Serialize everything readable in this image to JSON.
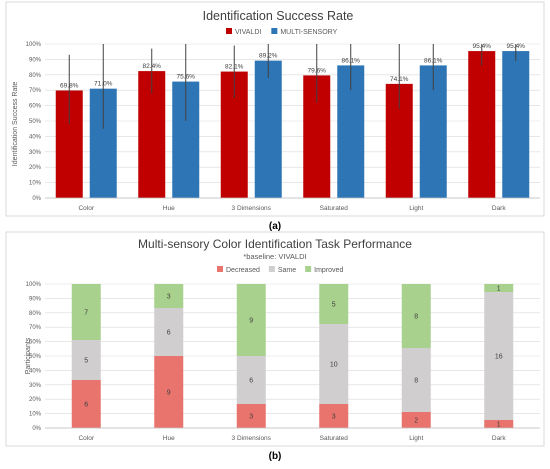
{
  "chart_data": [
    {
      "type": "bar",
      "title": "Identification Success Rate",
      "xlabel": "",
      "ylabel": "Identification Success Rate",
      "ylim": [
        0,
        100
      ],
      "yticks": [
        "0%",
        "10%",
        "20%",
        "30%",
        "40%",
        "50%",
        "60%",
        "70%",
        "80%",
        "90%",
        "100%"
      ],
      "grid": true,
      "legend_position": "top",
      "categories": [
        "Color",
        "Hue",
        "3 Dimensions",
        "Saturated",
        "Light",
        "Dark"
      ],
      "series": [
        {
          "name": "VIVALDI",
          "color": "#C00000",
          "values": [
            69.8,
            82.4,
            82.1,
            79.6,
            74.1,
            95.4
          ],
          "labels": [
            "69.8%",
            "82.4%",
            "82.1%",
            "79.6%",
            "74.1%",
            "95.4%"
          ],
          "error_low": [
            48,
            68,
            65,
            62,
            58,
            86
          ],
          "error_high": [
            93,
            97,
            99,
            100,
            100,
            100
          ]
        },
        {
          "name": "MULTI-SENSORY",
          "color": "#2E75B6",
          "values": [
            71.0,
            75.6,
            89.2,
            86.1,
            86.1,
            95.4
          ],
          "labels": [
            "71.0%",
            "75.6%",
            "89.2%",
            "86.1%",
            "86.1%",
            "95.4%"
          ],
          "error_low": [
            45,
            50,
            78,
            70,
            70,
            89
          ],
          "error_high": [
            100,
            100,
            100,
            100,
            100,
            100
          ]
        }
      ],
      "caption": "(a)"
    },
    {
      "type": "bar",
      "stacked": true,
      "title": "Multi-sensory Color Identification Task Performance",
      "subtitle": "*baseline: VIVALDI",
      "xlabel": "",
      "ylabel": "Participants",
      "ylim": [
        0,
        100
      ],
      "yticks": [
        "0%",
        "10%",
        "20%",
        "30%",
        "40%",
        "50%",
        "60%",
        "70%",
        "80%",
        "90%",
        "100%"
      ],
      "grid": true,
      "legend_position": "top",
      "categories": [
        "Color",
        "Hue",
        "3 Dimensions",
        "Saturated",
        "Light",
        "Dark"
      ],
      "series": [
        {
          "name": "Decreased",
          "color": "#E9746D",
          "values": [
            6,
            9,
            3,
            3,
            2,
            1
          ]
        },
        {
          "name": "Same",
          "color": "#D0CECE",
          "values": [
            5,
            6,
            6,
            10,
            8,
            16
          ]
        },
        {
          "name": "Improved",
          "color": "#A9D18E",
          "values": [
            7,
            3,
            9,
            5,
            8,
            1
          ]
        }
      ],
      "caption": "(b)"
    }
  ]
}
